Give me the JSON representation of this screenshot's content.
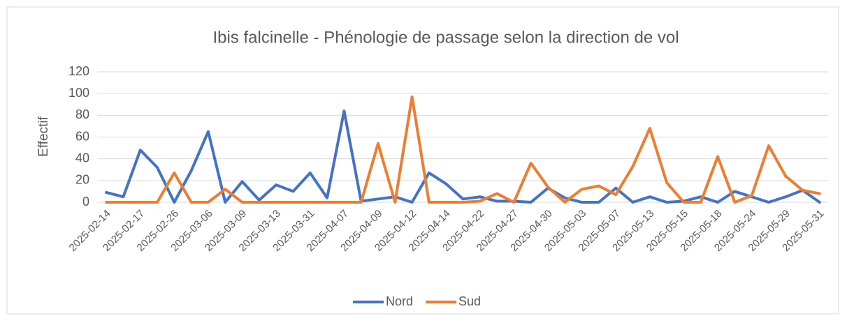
{
  "chart_data": {
    "type": "line",
    "title": "Ibis falcinelle - Phénologie de passage selon la direction de vol",
    "y_label": "Effectif",
    "categories": [
      "2025-02-14",
      null,
      "2025-02-17",
      null,
      "2025-02-26",
      null,
      "2025-03-06",
      null,
      "2025-03-09",
      null,
      "2025-03-13",
      null,
      "2025-03-31",
      null,
      "2025-04-07",
      null,
      "2025-04-09",
      null,
      "2025-04-12",
      null,
      "2025-04-14",
      null,
      "2025-04-22",
      null,
      "2025-04-27",
      null,
      "2025-04-30",
      null,
      "2025-05-03",
      null,
      "2025-05-07",
      null,
      "2025-05-13",
      null,
      "2025-05-15",
      null,
      "2025-05-18",
      null,
      "2025-05-24",
      null,
      "2025-05-29",
      null,
      "2025-05-31"
    ],
    "series": [
      {
        "name": "Nord",
        "color": "#4472c4",
        "values": [
          9,
          5,
          48,
          32,
          0,
          29,
          65,
          0,
          19,
          2,
          16,
          10,
          27,
          4,
          84,
          1,
          3,
          5,
          0,
          27,
          17,
          3,
          5,
          1,
          1,
          0,
          13,
          4,
          0,
          0,
          13,
          0,
          5,
          0,
          1,
          5,
          0,
          10,
          5,
          0,
          5,
          11,
          0
        ]
      },
      {
        "name": "Sud",
        "color": "#ed7d31",
        "values": [
          0,
          0,
          0,
          0,
          27,
          0,
          0,
          12,
          0,
          0,
          0,
          0,
          0,
          0,
          0,
          0,
          54,
          0,
          97,
          0,
          0,
          0,
          1,
          8,
          0,
          36,
          14,
          0,
          12,
          15,
          7,
          33,
          68,
          18,
          0,
          0,
          42,
          0,
          6,
          52,
          24,
          11,
          8
        ]
      }
    ],
    "ylim": [
      0,
      120
    ],
    "yticks": [
      0,
      20,
      40,
      60,
      80,
      100,
      120
    ],
    "grid": true,
    "legend": "bottom"
  }
}
